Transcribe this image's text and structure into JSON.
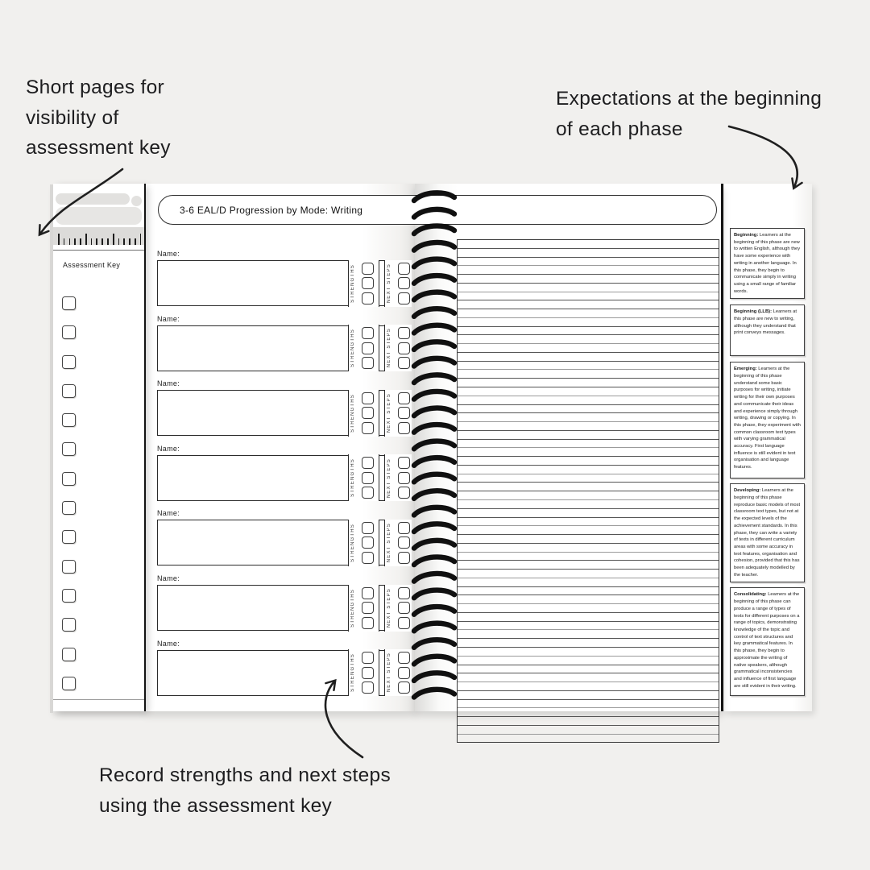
{
  "annotations": {
    "top_left": {
      "lines": [
        "Short pages for",
        "visibility of",
        "assessment key"
      ]
    },
    "top_right": {
      "lines": [
        "Expectations at the beginning",
        "of each phase"
      ]
    },
    "bottom": {
      "lines": [
        "Record strengths and next steps",
        "using the assessment key"
      ]
    }
  },
  "notebook": {
    "title": "3-6 EAL/D Progression by Mode: Writing",
    "assessment_key": {
      "label": "Assessment Key",
      "checkbox_count": 14,
      "ruler_tick_count": 16
    },
    "record_sections": {
      "count": 7,
      "name_label": "Name:",
      "strengths_label": "STRENGTHS",
      "next_steps_label": "NEXT STEPS",
      "checkboxes_per_column": 3
    },
    "ruled_page": {
      "line_count": 58
    },
    "spiral": {
      "ring_count": 31
    },
    "phases": [
      {
        "title": "Beginning:",
        "text": "Learners at the beginning of this phase are new to written English, although they have some experience with writing in another language. In this phase, they begin to communicate simply in writing using a small range of familiar words."
      },
      {
        "title": "Beginning (LLB):",
        "text": "Learners at this phase are new to writing, although they understand that print conveys messages."
      },
      {
        "title": "Emerging:",
        "text": "Learners at the beginning of this phase understand some basic purposes for writing, initiate writing for their own purposes and communicate their ideas and experience simply through writing, drawing or copying. In this phase, they experiment with common classroom text types with varying grammatical accuracy. First language influence is still evident in text organisation and language features."
      },
      {
        "title": "Developing:",
        "text": "Learners at the beginning of this phase reproduce basic models of most classroom text types, but not at the expected levels of the achievement standards. In this phase, they can write a variety of texts in different curriculum areas with some accuracy in text features, organisation and cohesion, provided that this has been adequately modelled by the teacher."
      },
      {
        "title": "Consolidating:",
        "text": "Learners at the beginning of this phase can produce a range of types of texts for different purposes on a range of topics, demonstrating knowledge of the topic and control of text structures and key grammatical features. In this phase, they begin to approximate the writing of native speakers, although grammatical inconsistencies and influence of first language are still evident in their writing."
      }
    ],
    "colors": {
      "ink": "#1f1f1f",
      "page": "#ffffff",
      "background": "#f1f0ee"
    }
  }
}
